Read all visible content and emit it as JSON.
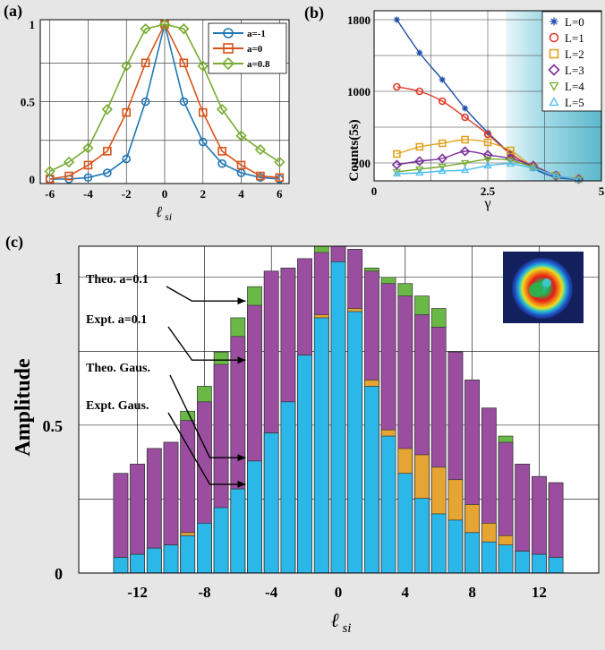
{
  "panels": {
    "a": {
      "label": "(a)",
      "chart_data": {
        "type": "line",
        "xlabel": "ℓ si",
        "x_ticks": [
          "-6",
          "-4",
          "-2",
          "0",
          "2",
          "4",
          "6"
        ],
        "y_ticks": [
          "0",
          "0.5",
          "1"
        ],
        "xlim": [
          -6.5,
          6.5
        ],
        "ylim": [
          0,
          1
        ],
        "legend": "top-right",
        "x": [
          -6,
          -5,
          -4,
          -3,
          -2,
          -1,
          0,
          1,
          2,
          3,
          4,
          5,
          6
        ],
        "series": [
          {
            "name": "a=-1",
            "color": "#1f77b4",
            "marker": "circle",
            "values": [
              0,
              0,
              0.01,
              0.04,
              0.13,
              0.5,
              1,
              0.5,
              0.24,
              0.1,
              0.04,
              0.01,
              0
            ]
          },
          {
            "name": "a=0",
            "color": "#d95319",
            "marker": "square",
            "values": [
              0,
              0.02,
              0.09,
              0.18,
              0.43,
              0.75,
              1,
              0.75,
              0.43,
              0.18,
              0.09,
              0.02,
              0.01
            ]
          },
          {
            "name": "a=0.8",
            "color": "#77ac30",
            "marker": "diamond",
            "values": [
              0.05,
              0.11,
              0.2,
              0.45,
              0.73,
              0.97,
              1,
              0.97,
              0.73,
              0.45,
              0.28,
              0.19,
              0.11
            ]
          }
        ]
      }
    },
    "b": {
      "label": "(b)",
      "chart_data": {
        "type": "line",
        "xlabel": "γ",
        "ylabel": "Counts(5s)",
        "x_ticks": [
          "0",
          "2.5",
          "5"
        ],
        "y_ticks": [
          "200",
          "1000",
          "1800"
        ],
        "xlim": [
          0,
          5
        ],
        "ylim": [
          0,
          1900
        ],
        "legend": "top-right",
        "shaded_region_from_x": 2.9,
        "x": [
          0.5,
          1,
          1.5,
          2,
          2.5,
          3,
          3.5,
          4,
          4.5
        ],
        "series": [
          {
            "name": "L=0",
            "color": "#1f4eaa",
            "marker": "asterisk",
            "values": [
              1800,
              1430,
              1130,
              810,
              540,
              310,
              140,
              40,
              15
            ]
          },
          {
            "name": "L=1",
            "color": "#dd3b2a",
            "marker": "circle",
            "values": [
              1050,
              1000,
              890,
              710,
              520,
              300,
              160,
              60,
              20
            ]
          },
          {
            "name": "L=2",
            "color": "#e0a21c",
            "marker": "square",
            "values": [
              300,
              380,
              420,
              460,
              430,
              340,
              160,
              60,
              20
            ]
          },
          {
            "name": "L=3",
            "color": "#7b2f9b",
            "marker": "diamond",
            "values": [
              180,
              220,
              250,
              330,
              290,
              250,
              170,
              60,
              20
            ]
          },
          {
            "name": "L=4",
            "color": "#77ac30",
            "marker": "triangle-down",
            "values": [
              100,
              130,
              160,
              200,
              240,
              230,
              150,
              60,
              15
            ]
          },
          {
            "name": "L=5",
            "color": "#4dbeee",
            "marker": "triangle-up",
            "values": [
              80,
              90,
              110,
              120,
              170,
              190,
              140,
              60,
              15
            ]
          }
        ]
      }
    },
    "c": {
      "label": "(c)",
      "chart_data": {
        "type": "bar",
        "xlabel": "ℓ si",
        "ylabel": "Amplitude",
        "x_ticks": [
          "-12",
          "-8",
          "-4",
          "0",
          "4",
          "8",
          "12"
        ],
        "y_ticks": [
          "0",
          "0.5",
          "1"
        ],
        "ylim": [
          0,
          1.05
        ],
        "categories": [
          -13,
          -12,
          -11,
          -10,
          -9,
          -8,
          -7,
          -6,
          -5,
          -4,
          -3,
          -2,
          -1,
          0,
          1,
          2,
          3,
          4,
          5,
          6,
          7,
          8,
          9,
          10,
          11,
          12,
          13
        ],
        "stacked_layers": [
          {
            "name": "Expt. Gaus.",
            "color": "#2bb8e8",
            "values": [
              0.05,
              0.06,
              0.08,
              0.09,
              0.12,
              0.16,
              0.21,
              0.27,
              0.36,
              0.45,
              0.55,
              0.7,
              0.82,
              1.0,
              0.84,
              0.6,
              0.44,
              0.32,
              0.24,
              0.19,
              0.17,
              0.13,
              0.1,
              0.09,
              0.07,
              0.06,
              0.05
            ]
          },
          {
            "name": "Theo. Gaus.",
            "color": "#e6a532",
            "values": [
              0.05,
              0.06,
              0.08,
              0.09,
              0.13,
              0.16,
              0.21,
              0.27,
              0.36,
              0.45,
              0.55,
              0.7,
              0.83,
              1.0,
              0.85,
              0.62,
              0.46,
              0.4,
              0.38,
              0.34,
              0.3,
              0.22,
              0.16,
              0.12,
              0.07,
              0.06,
              0.05
            ]
          },
          {
            "name": "Expt. a=0.1",
            "color": "#9b4ea0",
            "values": [
              0.32,
              0.35,
              0.4,
              0.42,
              0.49,
              0.55,
              0.67,
              0.76,
              0.86,
              0.97,
              0.98,
              1.01,
              1.03,
              1.05,
              1.04,
              0.97,
              0.93,
              0.89,
              0.83,
              0.79,
              0.71,
              0.62,
              0.53,
              0.42,
              0.35,
              0.31,
              0.29
            ]
          },
          {
            "name": "Theo. a=0.1",
            "color": "#6ab845",
            "values": [
              0.32,
              0.35,
              0.4,
              0.42,
              0.52,
              0.6,
              0.71,
              0.82,
              0.92,
              0.97,
              0.98,
              1.01,
              1.05,
              1.05,
              1.04,
              0.98,
              0.95,
              0.93,
              0.89,
              0.85,
              0.71,
              0.62,
              0.53,
              0.44,
              0.35,
              0.31,
              0.29
            ]
          }
        ],
        "annotations": [
          {
            "text": "Theo. a=0.1",
            "target_x": -5,
            "target_y": 0.92
          },
          {
            "text": "Expt. a=0.1",
            "target_x": -5,
            "target_y": 0.72
          },
          {
            "text": "Theo. Gaus.",
            "target_x": -5,
            "target_y": 0.39
          },
          {
            "text": "Expt. Gaus.",
            "target_x": -5,
            "target_y": 0.3
          }
        ]
      }
    }
  }
}
